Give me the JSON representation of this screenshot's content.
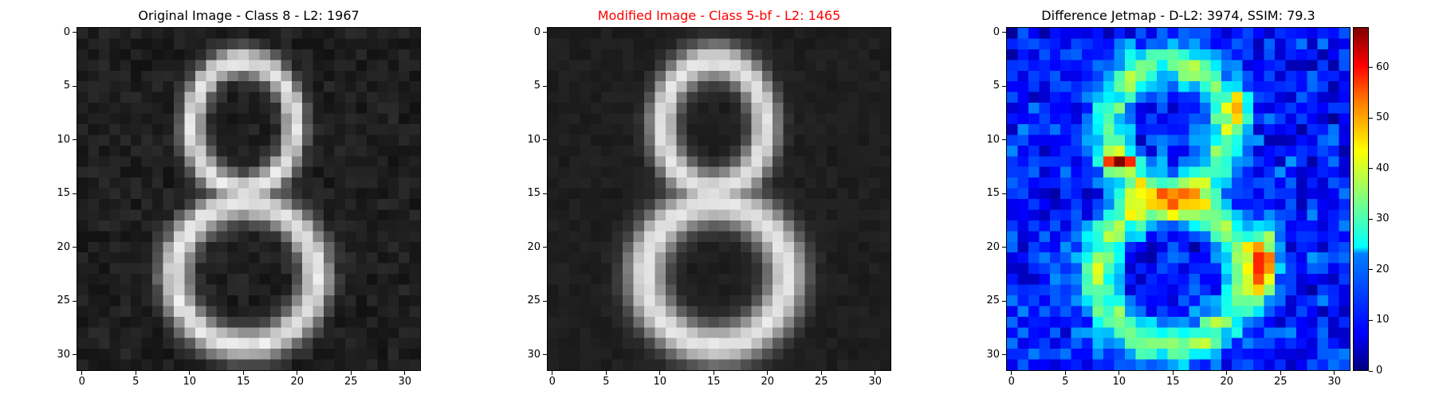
{
  "titles": {
    "left": "Original Image - Class 8 - L2: 1967",
    "middle": "Modified Image - Class 5-bf - L2: 1465",
    "right": "Difference Jetmap - D-L2: 3974, SSIM: 79.3"
  },
  "colors": {
    "middle_title": "#ff0000",
    "colormap": "jet"
  },
  "chart_data": [
    {
      "type": "heatmap",
      "title": "Original Image - Class 8 - L2: 1967",
      "colormap": "gray",
      "xlim": [
        -0.5,
        31.5
      ],
      "ylim": [
        31.5,
        -0.5
      ],
      "xticks": [
        0,
        5,
        10,
        15,
        20,
        25,
        30
      ],
      "yticks": [
        0,
        5,
        10,
        15,
        20,
        25,
        30
      ],
      "grid": false
    },
    {
      "type": "heatmap",
      "title": "Modified Image - Class 5-bf - L2: 1465",
      "colormap": "gray",
      "xlim": [
        -0.5,
        31.5
      ],
      "ylim": [
        31.5,
        -0.5
      ],
      "xticks": [
        0,
        5,
        10,
        15,
        20,
        25,
        30
      ],
      "yticks": [
        0,
        5,
        10,
        15,
        20,
        25,
        30
      ],
      "grid": false
    },
    {
      "type": "heatmap",
      "title": "Difference Jetmap - D-L2: 3974, SSIM: 79.3",
      "colormap": "jet",
      "xlim": [
        -0.5,
        31.5
      ],
      "ylim": [
        31.5,
        -0.5
      ],
      "xticks": [
        0,
        5,
        10,
        15,
        20,
        25,
        30
      ],
      "yticks": [
        0,
        5,
        10,
        15,
        20,
        25,
        30
      ],
      "colorbar": {
        "range": [
          0,
          68
        ],
        "ticks": [
          0,
          10,
          20,
          30,
          40,
          50,
          60
        ]
      },
      "grid": false
    }
  ]
}
